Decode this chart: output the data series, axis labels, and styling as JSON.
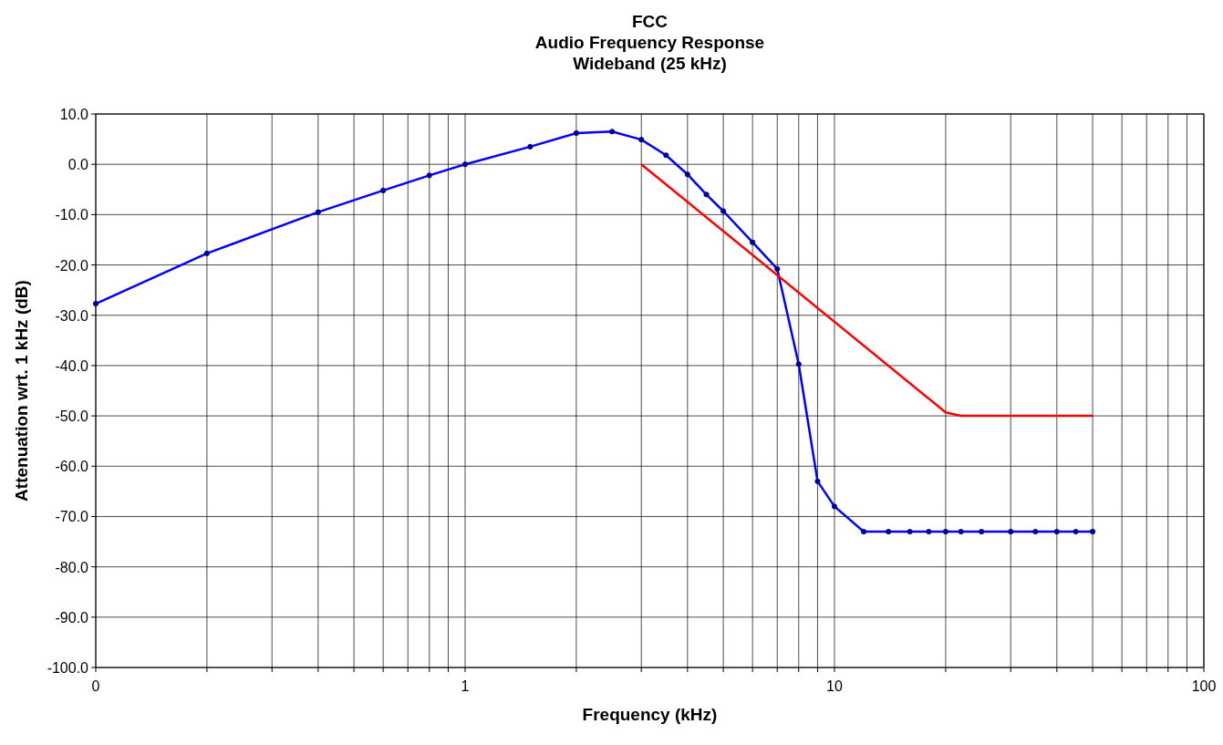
{
  "chart_data": {
    "type": "line",
    "title": "FCC\nAudio Frequency Response\nWideband (25 kHz)",
    "xlabel": "Frequency (kHz)",
    "ylabel": "Attenuation wrt. 1 kHz (dB)",
    "log": "x",
    "grid": true,
    "line_style": "solid",
    "xlim": [
      0.1,
      100
    ],
    "xticks": [
      {
        "value": 0.1,
        "label": "0"
      },
      {
        "value": 0.2,
        "label": null
      },
      {
        "value": 0.3,
        "label": null
      },
      {
        "value": 0.4,
        "label": null
      },
      {
        "value": 0.5,
        "label": null
      },
      {
        "value": 0.6,
        "label": null
      },
      {
        "value": 0.7,
        "label": null
      },
      {
        "value": 0.8,
        "label": null
      },
      {
        "value": 0.9,
        "label": null
      },
      1,
      {
        "value": 2,
        "label": null
      },
      {
        "value": 3,
        "label": null
      },
      {
        "value": 4,
        "label": null
      },
      {
        "value": 5,
        "label": null
      },
      {
        "value": 6,
        "label": null
      },
      {
        "value": 7,
        "label": null
      },
      {
        "value": 8,
        "label": null
      },
      {
        "value": 9,
        "label": null
      },
      10,
      {
        "value": 20,
        "label": null
      },
      {
        "value": 30,
        "label": null
      },
      {
        "value": 40,
        "label": null
      },
      {
        "value": 50,
        "label": null
      },
      {
        "value": 60,
        "label": null
      },
      {
        "value": 70,
        "label": null
      },
      {
        "value": 80,
        "label": null
      },
      {
        "value": 90,
        "label": null
      },
      100
    ],
    "ylim": [
      -100,
      10
    ],
    "yticks": [
      {
        "value": 10,
        "label": "10.0"
      },
      {
        "value": 0,
        "label": "0.0"
      },
      {
        "value": -10,
        "label": "-10.0"
      },
      {
        "value": -20,
        "label": "-20.0"
      },
      {
        "value": -30,
        "label": "-30.0"
      },
      {
        "value": -40,
        "label": "-40.0"
      },
      {
        "value": -50,
        "label": "-50.0"
      },
      {
        "value": -60,
        "label": "-60.0"
      },
      {
        "value": -70,
        "label": "-70.0"
      },
      {
        "value": -80,
        "label": "-80.0"
      },
      {
        "value": -90,
        "label": "-90.0"
      },
      {
        "value": -100,
        "label": "-100.0"
      }
    ],
    "series": [
      {
        "color": "#0000ff",
        "marker": "circle",
        "x": [
          0.1,
          0.2,
          0.4,
          0.6,
          0.8,
          1,
          1.5,
          2,
          2.5,
          3,
          3.5,
          4,
          4.5,
          5,
          6,
          7,
          8,
          9,
          10,
          12,
          14,
          16,
          18,
          20,
          22,
          25,
          30,
          35,
          40,
          45,
          50
        ],
        "values": [
          -27.7,
          -17.7,
          -9.5,
          -5.2,
          -2.2,
          0,
          3.5,
          6.2,
          6.5,
          4.9,
          1.8,
          -2,
          -6,
          -9.3,
          -15.5,
          -20.8,
          -39.7,
          -63,
          -68,
          -73,
          -73,
          -73,
          -73,
          -73,
          -73,
          -73,
          -73,
          -73,
          -73,
          -73,
          -73
        ]
      },
      {
        "color": "#ff0000",
        "marker": "none",
        "x": [
          3,
          20,
          22,
          50
        ],
        "values": [
          0,
          -49.3,
          -50,
          -50
        ]
      }
    ]
  }
}
